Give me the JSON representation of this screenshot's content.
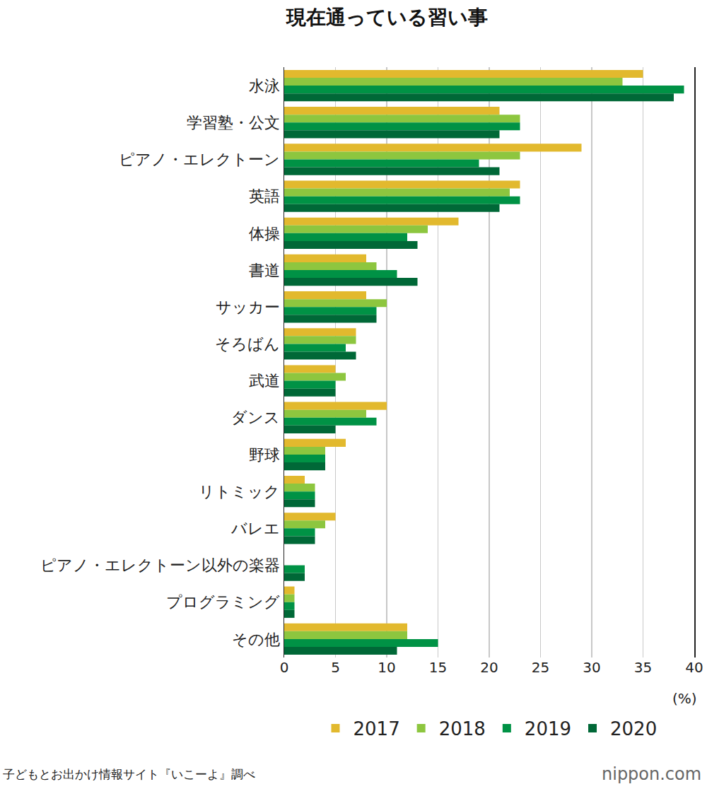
{
  "chart_data": {
    "type": "bar",
    "orientation": "horizontal",
    "title": "現在通っている習い事",
    "xlabel": "(%)",
    "source": "子どもとお出かけ情報サイト『いこーよ』調べ",
    "logo": "nippon.com",
    "categories": [
      "水泳",
      "学習塾・公文",
      "ピアノ・エレクトーン",
      "英語",
      "体操",
      "書道",
      "サッカー",
      "そろばん",
      "武道",
      "ダンス",
      "野球",
      "リトミック",
      "バレエ",
      "ピアノ・エレクトーン以外の楽器",
      "プログラミング",
      "その他"
    ],
    "series": [
      {
        "name": "2017",
        "color": "#e2b92e",
        "values": [
          35,
          21,
          29,
          23,
          17,
          8,
          8,
          7,
          5,
          10,
          6,
          2,
          5,
          null,
          1,
          12
        ]
      },
      {
        "name": "2018",
        "color": "#8dc63f",
        "values": [
          33,
          23,
          23,
          22,
          14,
          9,
          10,
          7,
          6,
          8,
          4,
          3,
          4,
          null,
          1,
          12
        ]
      },
      {
        "name": "2019",
        "color": "#009245",
        "values": [
          39,
          23,
          19,
          23,
          12,
          11,
          9,
          6,
          5,
          9,
          4,
          3,
          3,
          2,
          1,
          15
        ]
      },
      {
        "name": "2020",
        "color": "#006837",
        "values": [
          38,
          21,
          21,
          21,
          13,
          13,
          9,
          7,
          5,
          5,
          4,
          3,
          3,
          2,
          1,
          11
        ]
      }
    ],
    "xlim": [
      0,
      40
    ],
    "xticks": [
      0,
      5,
      10,
      15,
      20,
      25,
      30,
      35,
      40
    ],
    "grid": true,
    "legend": "bottom"
  }
}
